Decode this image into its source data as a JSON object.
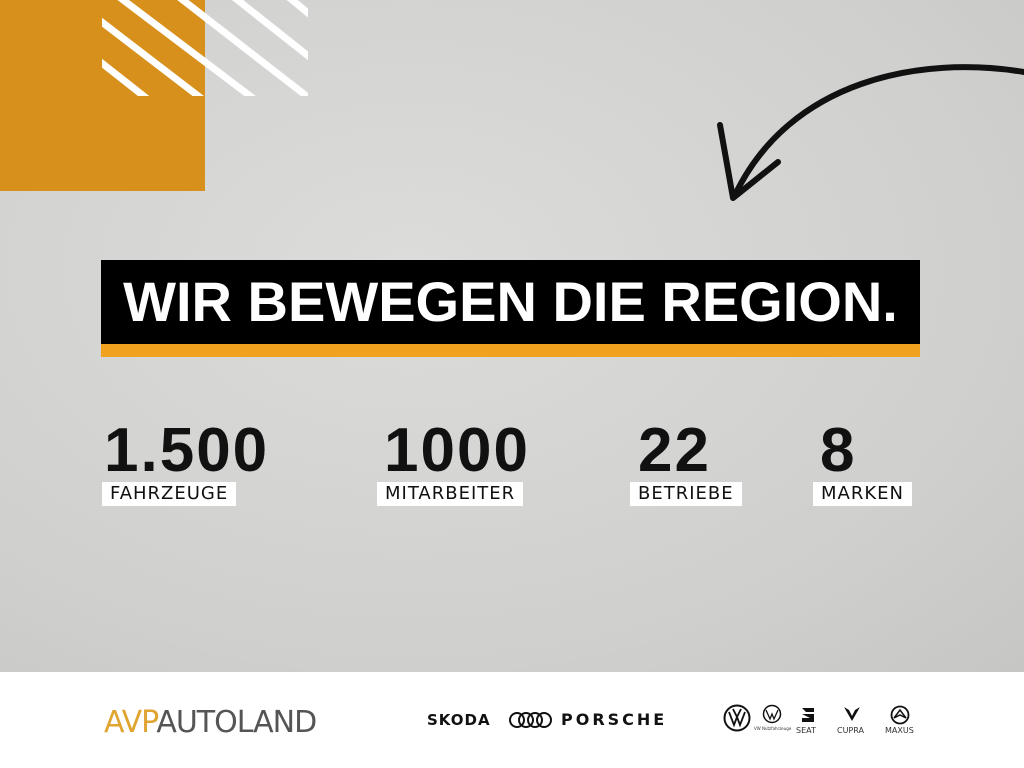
{
  "colors": {
    "orange": "#d8901c",
    "accent": "#f0a21f",
    "black": "#000000"
  },
  "headline": "WIR BEWEGEN DIE REGION.",
  "stats": [
    {
      "value": "1.500",
      "label": "FAHRZEUGE"
    },
    {
      "value": "1000",
      "label": "MITARBEITER"
    },
    {
      "value": "22",
      "label": "BETRIEBE"
    },
    {
      "value": "8",
      "label": "MARKEN"
    }
  ],
  "footer": {
    "logo": {
      "part1": "AVP",
      "part2": "AUTOLAND"
    },
    "brands": [
      "SKODA",
      "audi-rings-logo",
      "PORSCHE",
      "volkswagen-logo",
      "VW Nutzfahrzeuge",
      "SEAT",
      "CUPRA",
      "MAXUS"
    ]
  }
}
